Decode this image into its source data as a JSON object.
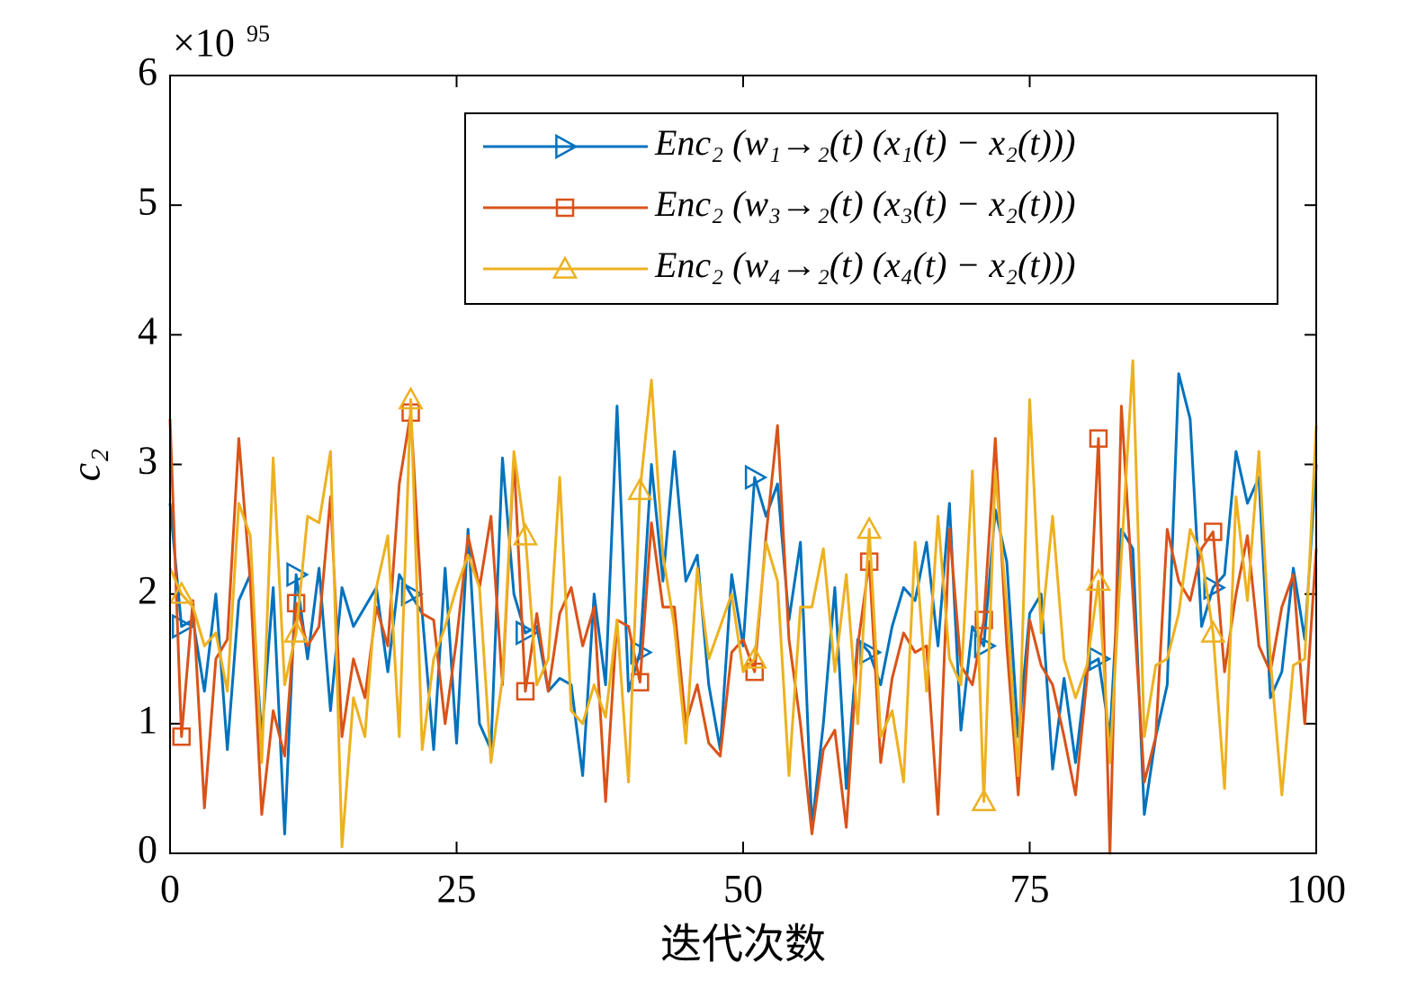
{
  "chart_data": {
    "type": "line",
    "y_label": "c₂",
    "x_label": "迭代次数",
    "y_multiplier": {
      "base": "×10",
      "exponent": "95"
    },
    "x": [
      0,
      1,
      2,
      3,
      4,
      5,
      6,
      7,
      8,
      9,
      10,
      11,
      12,
      13,
      14,
      15,
      16,
      17,
      18,
      19,
      20,
      21,
      22,
      23,
      24,
      25,
      26,
      27,
      28,
      29,
      30,
      31,
      32,
      33,
      34,
      35,
      36,
      37,
      38,
      39,
      40,
      41,
      42,
      43,
      44,
      45,
      46,
      47,
      48,
      49,
      50,
      51,
      52,
      53,
      54,
      55,
      56,
      57,
      58,
      59,
      60,
      61,
      62,
      63,
      64,
      65,
      66,
      67,
      68,
      69,
      70,
      71,
      72,
      73,
      74,
      75,
      76,
      77,
      78,
      79,
      80,
      81,
      82,
      83,
      84,
      85,
      86,
      87,
      88,
      89,
      90,
      91,
      92,
      93,
      94,
      95,
      96,
      97,
      98,
      99,
      100
    ],
    "xlim": [
      0,
      100
    ],
    "xticks": [
      0,
      25,
      50,
      75,
      100
    ],
    "ylim": [
      0,
      6
    ],
    "yticks": [
      0,
      1,
      2,
      3,
      4,
      5,
      6
    ],
    "grid": false,
    "legend": "upper right",
    "series": [
      {
        "name": "Enc₂ (w₁→₂(t) (x₁(t) − x₂(t)))",
        "color": "#0072BD",
        "marker": "triangle-right",
        "values": [
          2.7,
          1.75,
          1.8,
          1.25,
          2.0,
          0.8,
          1.95,
          2.15,
          0.9,
          2.05,
          0.15,
          2.15,
          1.5,
          2.2,
          1.1,
          2.05,
          1.75,
          1.9,
          2.05,
          1.4,
          2.15,
          2.0,
          1.85,
          0.8,
          2.2,
          0.85,
          2.5,
          1.0,
          0.8,
          3.05,
          2.0,
          1.7,
          1.75,
          1.25,
          1.35,
          1.3,
          0.6,
          2.0,
          1.3,
          3.45,
          1.25,
          1.55,
          3.0,
          2.1,
          3.1,
          2.1,
          2.3,
          1.3,
          0.8,
          2.15,
          1.6,
          2.9,
          2.6,
          2.85,
          1.8,
          2.4,
          0.2,
          1.0,
          2.05,
          0.5,
          1.65,
          1.55,
          1.3,
          1.75,
          2.05,
          1.95,
          2.4,
          1.6,
          2.7,
          0.95,
          1.75,
          1.6,
          2.65,
          2.25,
          0.9,
          1.85,
          2.0,
          0.65,
          1.35,
          0.7,
          1.45,
          1.5,
          0.9,
          2.5,
          2.35,
          0.3,
          0.9,
          1.3,
          3.7,
          3.35,
          1.75,
          2.05,
          2.15,
          3.1,
          2.7,
          2.9,
          1.2,
          1.4,
          2.2,
          1.65,
          3.0
        ]
      },
      {
        "name": "Enc₂ (w₃→₂(t) (x₃(t) − x₂(t)))",
        "color": "#D95319",
        "marker": "square",
        "values": [
          3.35,
          0.9,
          1.95,
          0.35,
          1.5,
          1.65,
          3.2,
          2.1,
          0.3,
          1.1,
          0.75,
          1.93,
          1.6,
          1.75,
          2.75,
          0.9,
          1.5,
          1.2,
          1.9,
          1.6,
          2.85,
          3.4,
          1.85,
          1.8,
          1.0,
          1.65,
          2.45,
          2.05,
          2.6,
          1.3,
          3.05,
          1.25,
          1.85,
          1.25,
          1.85,
          2.05,
          1.6,
          1.9,
          0.4,
          1.8,
          1.75,
          1.32,
          2.55,
          1.9,
          1.9,
          1.0,
          1.3,
          0.85,
          0.75,
          1.55,
          1.65,
          1.4,
          2.45,
          3.3,
          1.65,
          1.0,
          0.15,
          0.8,
          0.95,
          0.2,
          1.6,
          2.25,
          0.7,
          1.35,
          1.7,
          1.55,
          1.6,
          0.3,
          2.5,
          1.45,
          1.3,
          1.8,
          3.2,
          1.6,
          0.45,
          1.8,
          1.45,
          1.3,
          0.9,
          0.45,
          1.35,
          3.2,
          0.0,
          3.45,
          2.0,
          0.55,
          0.9,
          2.5,
          2.1,
          1.95,
          2.35,
          2.48,
          1.4,
          2.0,
          2.45,
          1.6,
          1.4,
          1.9,
          2.15,
          1.0,
          2.35
        ]
      },
      {
        "name": "Enc₂ (w₄→₂(t) (x₄(t) − x₂(t)))",
        "color": "#EDB120",
        "marker": "triangle-up",
        "values": [
          2.2,
          2.0,
          1.9,
          1.6,
          1.7,
          1.25,
          2.7,
          2.45,
          0.7,
          3.05,
          1.3,
          1.7,
          2.6,
          2.55,
          3.1,
          0.05,
          1.2,
          0.9,
          2.05,
          2.45,
          0.9,
          3.5,
          0.8,
          1.5,
          1.75,
          2.05,
          2.3,
          2.05,
          0.7,
          1.35,
          3.1,
          2.45,
          1.3,
          1.5,
          2.9,
          1.1,
          1.0,
          1.3,
          1.05,
          1.8,
          0.55,
          2.8,
          3.65,
          2.3,
          1.75,
          0.85,
          2.2,
          1.5,
          1.75,
          2.0,
          1.4,
          1.5,
          2.4,
          2.1,
          0.6,
          1.9,
          1.9,
          2.35,
          1.4,
          2.15,
          1.0,
          2.5,
          0.9,
          1.1,
          0.55,
          2.4,
          1.25,
          2.6,
          1.5,
          1.3,
          2.95,
          0.4,
          2.95,
          1.9,
          0.6,
          3.5,
          1.7,
          2.6,
          1.5,
          1.2,
          1.45,
          2.1,
          0.7,
          2.3,
          3.8,
          0.9,
          1.45,
          1.5,
          1.85,
          2.5,
          2.3,
          1.7,
          0.5,
          2.75,
          1.95,
          3.1,
          1.5,
          0.45,
          1.45,
          1.5,
          3.3
        ]
      }
    ]
  }
}
